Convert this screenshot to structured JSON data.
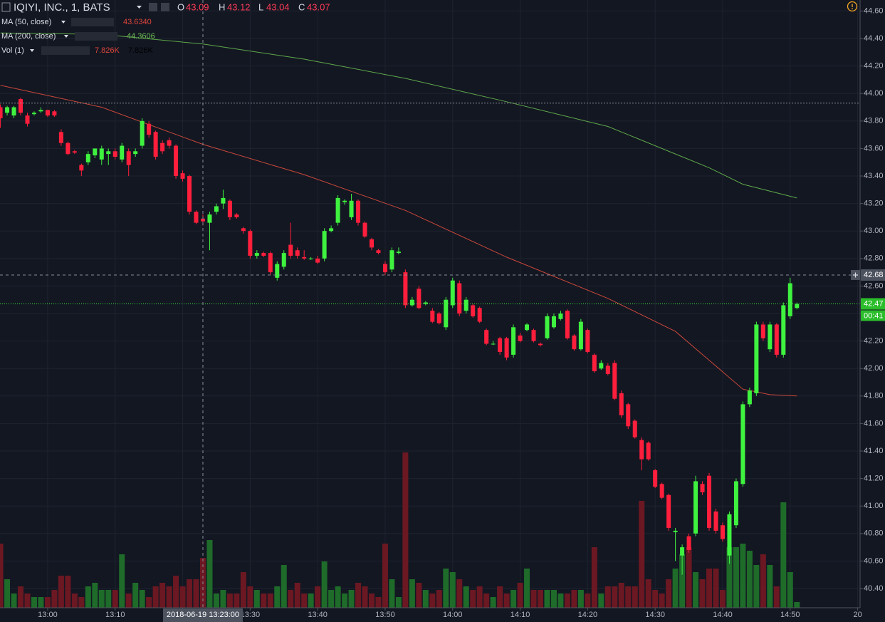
{
  "chart_data": {
    "type": "candlestick",
    "symbol": "IQIYI, INC., 1, BATS",
    "ohlc": [
      {
        "key": "O",
        "value": 43.09
      },
      {
        "key": "H",
        "value": 43.12
      },
      {
        "key": "L",
        "value": 43.04
      },
      {
        "key": "C",
        "value": 43.07
      }
    ],
    "indicators": [
      {
        "name": "MA (50, close)",
        "value_label": "43.6340",
        "color": "#c9483a",
        "x": [
          0,
          15,
          30,
          45,
          60,
          75,
          90,
          100,
          105,
          110,
          114,
          118
        ],
        "values": [
          44.06,
          43.9,
          43.63,
          43.41,
          43.15,
          42.81,
          42.51,
          42.27,
          42.06,
          41.85,
          41.81,
          41.8
        ]
      },
      {
        "name": "MA (200, close)",
        "value_label": "44.3606",
        "color": "#5fa84a",
        "x": [
          0,
          15,
          30,
          45,
          60,
          75,
          90,
          100,
          105,
          110,
          118
        ],
        "values": [
          44.44,
          44.43,
          44.36,
          44.25,
          44.11,
          43.94,
          43.76,
          43.56,
          43.46,
          43.34,
          43.24
        ]
      }
    ],
    "volume_legend": {
      "name": "Vol (1)",
      "value_labels": [
        "7.826K",
        "7.826K"
      ]
    },
    "up_color": "#3ff23f",
    "down_color": "#ff1f3c",
    "volume_up_color": "#1e6b2a",
    "volume_down_color": "#6b1822",
    "xlim": [
      -0.06,
      127.36
    ],
    "ylim": [
      40.26,
      44.68
    ],
    "volume_ylim": [
      0,
      33600
    ],
    "grid": true,
    "xticks": [
      {
        "value": 7,
        "label": "13:00"
      },
      {
        "value": 17,
        "label": "13:10"
      },
      {
        "value": 27,
        "label": "13:20"
      },
      {
        "value": 37,
        "label": "13:30"
      },
      {
        "value": 47,
        "label": "13:40"
      },
      {
        "value": 57,
        "label": "13:50"
      },
      {
        "value": 67,
        "label": "14:00"
      },
      {
        "value": 77,
        "label": "14:10"
      },
      {
        "value": 87,
        "label": "14:20"
      },
      {
        "value": 97,
        "label": "14:30"
      },
      {
        "value": 107,
        "label": "14:40"
      },
      {
        "value": 117,
        "label": "14:50"
      },
      {
        "value": 127,
        "label": "20"
      }
    ],
    "yticks": [
      {
        "value": 44.6,
        "label": "44.60"
      },
      {
        "value": 44.4,
        "label": "44.40"
      },
      {
        "value": 44.2,
        "label": "44.20"
      },
      {
        "value": 44.0,
        "label": "44.00"
      },
      {
        "value": 43.8,
        "label": "43.80"
      },
      {
        "value": 43.6,
        "label": "43.60"
      },
      {
        "value": 43.4,
        "label": "43.40"
      },
      {
        "value": 43.2,
        "label": "43.20"
      },
      {
        "value": 43.0,
        "label": "43.00"
      },
      {
        "value": 42.8,
        "label": "42.80"
      },
      {
        "value": 42.6,
        "label": "42.60"
      },
      {
        "value": 42.4,
        "label": "42.40"
      },
      {
        "value": 42.2,
        "label": "42.20"
      },
      {
        "value": 42.0,
        "label": "42.00"
      },
      {
        "value": 41.8,
        "label": "41.80"
      },
      {
        "value": 41.6,
        "label": "41.60"
      },
      {
        "value": 41.4,
        "label": "41.40"
      },
      {
        "value": 41.2,
        "label": "41.20"
      },
      {
        "value": 41.0,
        "label": "41.00"
      },
      {
        "value": 40.8,
        "label": "40.80"
      },
      {
        "value": 40.6,
        "label": "40.60"
      },
      {
        "value": 40.4,
        "label": "40.40"
      }
    ],
    "reference_line": 43.93,
    "crosshair": {
      "x": 30,
      "y": 42.68,
      "x_label": "2018-06-19 13:23:00"
    },
    "last_price": {
      "value": 42.47,
      "countdown": "00:41"
    },
    "candles": [
      [
        43.9,
        43.92,
        43.75,
        43.82,
        10080
      ],
      [
        43.86,
        43.91,
        43.84,
        43.9,
        4480
      ],
      [
        43.84,
        43.91,
        43.82,
        43.9,
        2240
      ],
      [
        43.96,
        43.97,
        43.84,
        43.86,
        3360
      ],
      [
        43.84,
        43.86,
        43.76,
        43.78,
        2240
      ],
      [
        43.85,
        43.87,
        43.84,
        43.86,
        1680
      ],
      [
        43.87,
        43.9,
        43.86,
        43.88,
        1680
      ],
      [
        43.88,
        43.88,
        43.83,
        43.84,
        1680
      ],
      [
        43.87,
        43.88,
        43.83,
        43.84,
        2800
      ],
      [
        43.72,
        43.74,
        43.62,
        43.64,
        5040
      ],
      [
        43.64,
        43.65,
        43.55,
        43.56,
        5040
      ],
      [
        43.58,
        43.59,
        43.56,
        43.57,
        2240
      ],
      [
        43.48,
        43.49,
        43.4,
        43.44,
        1680
      ],
      [
        43.5,
        43.58,
        43.48,
        43.56,
        3360
      ],
      [
        43.55,
        43.6,
        43.53,
        43.6,
        3920
      ],
      [
        43.52,
        43.62,
        43.48,
        43.6,
        2800
      ],
      [
        43.56,
        43.6,
        43.48,
        43.58,
        2800
      ],
      [
        43.58,
        43.6,
        43.52,
        43.54,
        2800
      ],
      [
        43.52,
        43.64,
        43.5,
        43.62,
        8400
      ],
      [
        43.58,
        43.6,
        43.4,
        43.48,
        2240
      ],
      [
        43.56,
        43.6,
        43.54,
        43.58,
        3920
      ],
      [
        43.62,
        43.82,
        43.6,
        43.8,
        2800
      ],
      [
        43.78,
        43.8,
        43.68,
        43.7,
        1680
      ],
      [
        43.72,
        43.73,
        43.52,
        43.54,
        3360
      ],
      [
        43.64,
        43.66,
        43.56,
        43.58,
        3920
      ],
      [
        43.66,
        43.68,
        43.6,
        43.62,
        3360
      ],
      [
        43.62,
        43.63,
        43.38,
        43.4,
        5040
      ],
      [
        43.42,
        43.44,
        43.36,
        43.38,
        3360
      ],
      [
        43.4,
        43.41,
        43.12,
        43.14,
        4480
      ],
      [
        43.14,
        43.15,
        43.05,
        43.06,
        4480
      ],
      [
        43.09,
        43.12,
        43.04,
        43.07,
        7826
      ],
      [
        43.06,
        43.14,
        42.86,
        43.12,
        10640
      ],
      [
        43.14,
        43.2,
        43.12,
        43.18,
        2240
      ],
      [
        43.2,
        43.3,
        43.16,
        43.24,
        2800
      ],
      [
        43.22,
        43.23,
        43.08,
        43.1,
        2240
      ],
      [
        43.12,
        43.13,
        43.09,
        43.1,
        2240
      ],
      [
        43.02,
        43.03,
        42.98,
        43.0,
        5600
      ],
      [
        43.0,
        43.01,
        42.8,
        42.82,
        3360
      ],
      [
        42.82,
        42.86,
        42.8,
        42.84,
        2800
      ],
      [
        42.84,
        42.85,
        42.81,
        42.82,
        2240
      ],
      [
        42.84,
        42.85,
        42.68,
        42.7,
        2240
      ],
      [
        42.66,
        42.78,
        42.64,
        42.76,
        3360
      ],
      [
        42.74,
        42.86,
        42.72,
        42.84,
        6720
      ],
      [
        42.9,
        43.06,
        42.8,
        42.82,
        2800
      ],
      [
        42.86,
        42.88,
        42.8,
        42.82,
        3920
      ],
      [
        42.81,
        42.86,
        42.79,
        42.8,
        2240
      ],
      [
        42.8,
        42.81,
        42.79,
        42.8,
        2240
      ],
      [
        42.8,
        42.82,
        42.76,
        42.77,
        3360
      ],
      [
        42.8,
        43.02,
        42.78,
        43.0,
        7280
      ],
      [
        43.0,
        43.04,
        42.99,
        43.02,
        2800
      ],
      [
        43.06,
        43.26,
        43.04,
        43.24,
        3360
      ],
      [
        43.21,
        43.23,
        43.19,
        43.22,
        2240
      ],
      [
        43.1,
        43.27,
        43.08,
        43.22,
        2800
      ],
      [
        43.22,
        43.23,
        43.04,
        43.06,
        3920
      ],
      [
        43.06,
        43.07,
        42.95,
        42.96,
        3360
      ],
      [
        42.94,
        42.95,
        42.86,
        42.88,
        2240
      ],
      [
        42.86,
        42.87,
        42.83,
        42.84,
        1680
      ],
      [
        42.76,
        42.78,
        42.68,
        42.7,
        10080
      ],
      [
        42.72,
        42.88,
        42.7,
        42.86,
        4480
      ],
      [
        42.84,
        42.88,
        42.83,
        42.85,
        1680
      ],
      [
        42.7,
        42.72,
        42.44,
        42.46,
        24420
      ],
      [
        42.46,
        42.52,
        42.45,
        42.5,
        4480
      ],
      [
        42.58,
        42.6,
        42.43,
        42.44,
        3920
      ],
      [
        42.47,
        42.49,
        42.46,
        42.48,
        2800
      ],
      [
        42.42,
        42.44,
        42.33,
        42.34,
        2240
      ],
      [
        42.4,
        42.41,
        42.32,
        42.33,
        2800
      ],
      [
        42.3,
        42.52,
        42.28,
        42.5,
        6160
      ],
      [
        42.46,
        42.66,
        42.44,
        42.64,
        5600
      ],
      [
        42.62,
        42.64,
        42.38,
        42.4,
        4480
      ],
      [
        42.42,
        42.52,
        42.4,
        42.5,
        3360
      ],
      [
        42.46,
        42.47,
        42.37,
        42.38,
        2800
      ],
      [
        42.44,
        42.45,
        42.33,
        42.34,
        3360
      ],
      [
        42.28,
        42.29,
        42.17,
        42.18,
        2240
      ],
      [
        42.18,
        42.2,
        42.17,
        42.18,
        1680
      ],
      [
        42.22,
        42.23,
        42.1,
        42.12,
        3360
      ],
      [
        42.22,
        42.23,
        42.06,
        42.08,
        2240
      ],
      [
        42.1,
        42.32,
        42.08,
        42.3,
        2800
      ],
      [
        42.24,
        42.26,
        42.19,
        42.2,
        3920
      ],
      [
        42.28,
        42.33,
        42.27,
        42.32,
        6160
      ],
      [
        42.28,
        42.29,
        42.19,
        42.2,
        2800
      ],
      [
        42.18,
        42.19,
        42.16,
        42.17,
        2800
      ],
      [
        42.22,
        42.4,
        42.21,
        42.38,
        2800
      ],
      [
        42.3,
        42.4,
        42.29,
        42.38,
        2800
      ],
      [
        42.36,
        42.42,
        42.35,
        42.4,
        2240
      ],
      [
        42.42,
        42.43,
        42.21,
        42.22,
        2240
      ],
      [
        42.24,
        42.25,
        42.13,
        42.14,
        2800
      ],
      [
        42.14,
        42.36,
        42.13,
        42.34,
        2800
      ],
      [
        42.28,
        42.29,
        42.11,
        42.12,
        2240
      ],
      [
        42.1,
        42.11,
        41.97,
        41.98,
        9520
      ],
      [
        42.0,
        42.06,
        41.99,
        42.04,
        2240
      ],
      [
        42.02,
        42.04,
        41.95,
        41.96,
        3360
      ],
      [
        42.04,
        42.06,
        41.77,
        41.78,
        3360
      ],
      [
        41.82,
        41.84,
        41.64,
        41.66,
        3920
      ],
      [
        41.74,
        41.75,
        41.56,
        41.58,
        3360
      ],
      [
        41.62,
        41.63,
        41.49,
        41.5,
        3360
      ],
      [
        41.48,
        41.5,
        41.26,
        41.34,
        16800
      ],
      [
        41.46,
        41.47,
        41.33,
        41.34,
        4480
      ],
      [
        41.26,
        41.27,
        41.13,
        41.14,
        2800
      ],
      [
        41.16,
        41.17,
        41.05,
        41.06,
        2240
      ],
      [
        41.08,
        41.09,
        40.82,
        40.84,
        4480
      ],
      [
        40.81,
        40.84,
        40.6,
        40.82,
        6160
      ],
      [
        40.64,
        40.72,
        40.5,
        40.7,
        8400
      ],
      [
        40.78,
        40.8,
        40.66,
        40.68,
        9520
      ],
      [
        40.8,
        41.22,
        40.78,
        41.18,
        5600
      ],
      [
        41.16,
        41.18,
        41.08,
        41.1,
        4480
      ],
      [
        41.22,
        41.24,
        40.82,
        40.84,
        6160
      ],
      [
        40.96,
        40.98,
        40.8,
        40.82,
        6160
      ],
      [
        40.86,
        40.88,
        40.74,
        40.76,
        2800
      ],
      [
        40.64,
        40.96,
        40.58,
        40.94,
        9520
      ],
      [
        40.86,
        41.2,
        40.84,
        41.18,
        9520
      ],
      [
        41.16,
        41.76,
        41.14,
        41.74,
        10080
      ],
      [
        41.74,
        41.86,
        41.72,
        41.84,
        8960
      ],
      [
        41.82,
        42.34,
        41.8,
        42.32,
        6720
      ],
      [
        42.32,
        42.34,
        42.2,
        42.22,
        8400
      ],
      [
        42.14,
        42.34,
        42.12,
        42.32,
        6720
      ],
      [
        42.32,
        42.33,
        42.08,
        42.1,
        3360
      ],
      [
        42.1,
        42.48,
        42.08,
        42.46,
        16580
      ],
      [
        42.38,
        42.66,
        42.36,
        42.62,
        5600
      ],
      [
        42.44,
        42.48,
        42.43,
        42.47,
        900
      ]
    ]
  }
}
